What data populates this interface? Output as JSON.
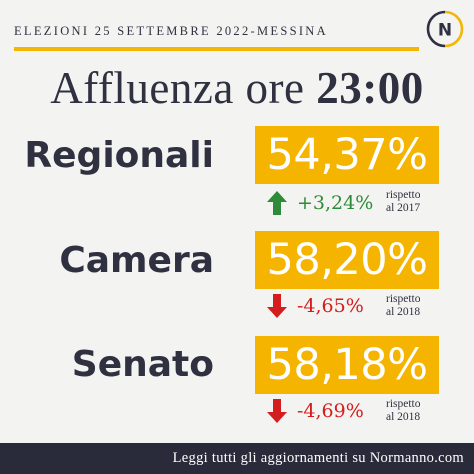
{
  "header": {
    "label": "ELEZIONI 25 SETTEMBRE 2022-MESSINA",
    "logo_letters": "N",
    "accent_color": "#f2b705"
  },
  "title": {
    "prefix": "Affluenza ore ",
    "hour": "23:00"
  },
  "rows": [
    {
      "label": "Regionali",
      "value": "54,37%",
      "change": "+3,24%",
      "direction": "up",
      "direction_icon": "arrow-up-icon",
      "compare_line1": "rispetto",
      "compare_line2": "al 2017"
    },
    {
      "label": "Camera",
      "value": "58,20%",
      "change": "-4,65%",
      "direction": "down",
      "direction_icon": "arrow-down-icon",
      "compare_line1": "rispetto",
      "compare_line2": "al 2018"
    },
    {
      "label": "Senato",
      "value": "58,18%",
      "change": "-4,69%",
      "direction": "down",
      "direction_icon": "arrow-down-icon",
      "compare_line1": "rispetto",
      "compare_line2": "al 2018"
    }
  ],
  "colors": {
    "value_box": "#f5b400",
    "up": "#2e8b3a",
    "down": "#d41d1d",
    "footer_bg": "#2a2b3a"
  },
  "footer": {
    "text": "Leggi tutti gli aggiornamenti su Normanno.com"
  }
}
